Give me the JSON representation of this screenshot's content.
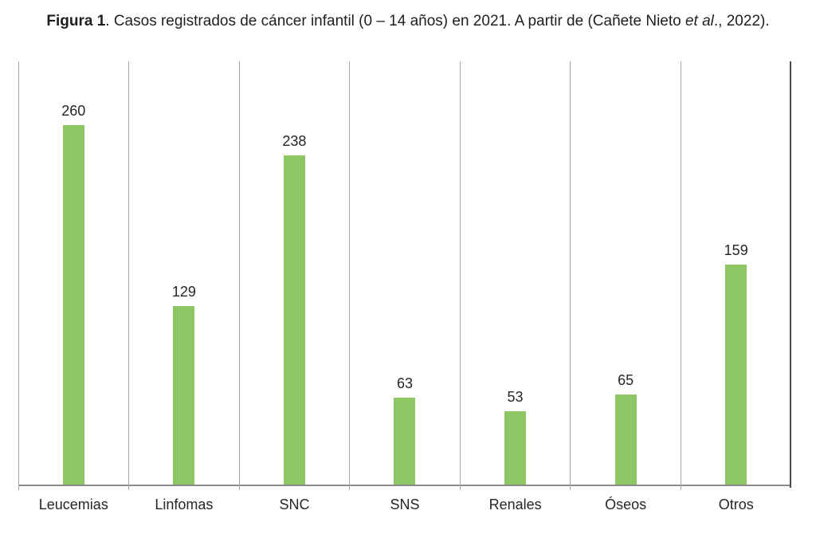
{
  "caption": {
    "bold": "Figura 1",
    "main": ". Casos registrados de cáncer infantil (0 – 14 años) en 2021. A partir de (Cañete Nieto ",
    "italic": "et al",
    "end": "., 2022)."
  },
  "chart_data": {
    "type": "bar",
    "title": "Figura 1. Casos registrados de cáncer infantil (0 – 14 años) en 2021. A partir de (Cañete Nieto et al., 2022).",
    "categories": [
      "Leucemias",
      "Linfomas",
      "SNC",
      "SNS",
      "Renales",
      "Óseos",
      "Otros"
    ],
    "values": [
      260,
      129,
      238,
      63,
      53,
      65,
      159
    ],
    "xlabel": "",
    "ylabel": "",
    "ylim": [
      0,
      306
    ],
    "y_axis_visible": false,
    "grid": "vertical category separators only",
    "legend": "none",
    "data_labels": "above bars",
    "bar_color": "#8DC763",
    "grid_line_color": "#A7A7A7",
    "axis_line_color": "#8C8C8C",
    "right_border_color": "#4D4D4D",
    "label_color": "#262626"
  }
}
